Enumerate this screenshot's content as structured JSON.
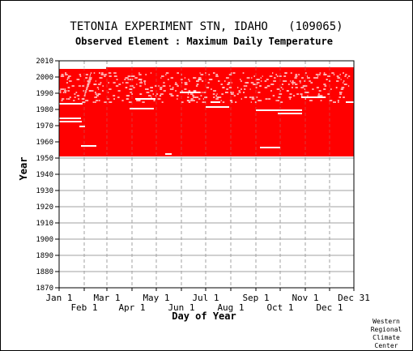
{
  "chart_data": {
    "type": "heatmap",
    "title": "TETONIA EXPERIMENT STN, IDAHO   (109065)",
    "subtitle": "Observed Element : Maximum Daily Temperature",
    "xlabel": "Day of Year",
    "ylabel": "Year",
    "ylim": [
      1870,
      2010
    ],
    "y_ticks": [
      1870,
      1880,
      1890,
      1900,
      1910,
      1920,
      1930,
      1940,
      1950,
      1960,
      1970,
      1980,
      1990,
      2000,
      2010
    ],
    "x_ticks_upper": [
      {
        "label": "Jan 1",
        "day": 1
      },
      {
        "label": "Mar 1",
        "day": 60
      },
      {
        "label": "May 1",
        "day": 121
      },
      {
        "label": "Jul 1",
        "day": 182
      },
      {
        "label": "Sep 1",
        "day": 244
      },
      {
        "label": "Nov 1",
        "day": 305
      },
      {
        "label": "Dec 31",
        "day": 365
      }
    ],
    "x_ticks_lower": [
      {
        "label": "Feb 1",
        "day": 32
      },
      {
        "label": "Apr 1",
        "day": 91
      },
      {
        "label": "Jun 1",
        "day": 152
      },
      {
        "label": "Aug 1",
        "day": 213
      },
      {
        "label": "Oct 1",
        "day": 274
      },
      {
        "label": "Dec 1",
        "day": 335
      }
    ],
    "xlim": [
      1,
      365
    ],
    "grid": true,
    "data_color": "#ff0000",
    "period_of_record": {
      "start_year": 1951,
      "end_year": 2005
    },
    "missing_segments": [
      {
        "year": 1957,
        "day_start": 28,
        "day_end": 47
      },
      {
        "year": 1952,
        "day_start": 132,
        "day_end": 140
      },
      {
        "year": 1956,
        "day_start": 249,
        "day_end": 274
      },
      {
        "year": 1969,
        "day_start": 26,
        "day_end": 33
      },
      {
        "year": 1972,
        "day_start": 1,
        "day_end": 29
      },
      {
        "year": 1974,
        "day_start": 1,
        "day_end": 28
      },
      {
        "year": 1977,
        "day_start": 271,
        "day_end": 301
      },
      {
        "year": 1979,
        "day_start": 244,
        "day_end": 301
      },
      {
        "year": 1980,
        "day_start": 88,
        "day_end": 118
      },
      {
        "year": 1981,
        "day_start": 182,
        "day_end": 211
      },
      {
        "year": 1983,
        "day_start": 1,
        "day_end": 30
      },
      {
        "year": 1984,
        "day_start": 188,
        "day_end": 200
      },
      {
        "year": 1984,
        "day_start": 355,
        "day_end": 365
      },
      {
        "year": 1986,
        "day_start": 95,
        "day_end": 120
      },
      {
        "year": 1987,
        "day_start": 300,
        "day_end": 330
      },
      {
        "year": 1990,
        "day_start": 150,
        "day_end": 175
      },
      {
        "year": 2005,
        "day_start": 1,
        "day_end": 59
      }
    ],
    "credit": [
      "Western",
      "Regional",
      "Climate",
      "Center"
    ]
  }
}
